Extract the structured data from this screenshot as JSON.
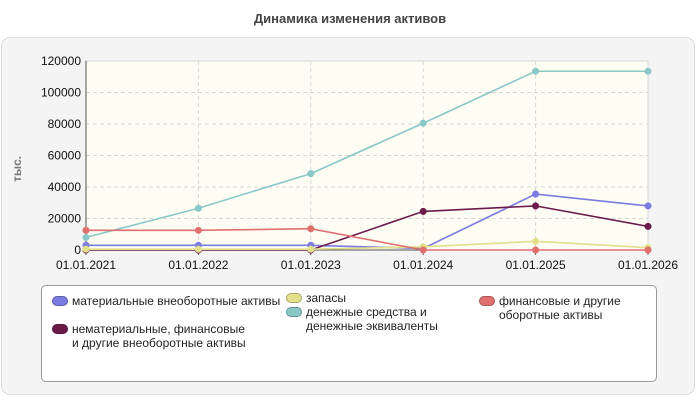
{
  "chart_data": {
    "type": "line",
    "title": "Динамика изменения активов",
    "ylabel": "тыс.",
    "xlabel": "",
    "categories": [
      "01.01.2021",
      "01.01.2022",
      "01.01.2023",
      "01.01.2024",
      "01.01.2025",
      "01.01.2026"
    ],
    "ylim": [
      0,
      120000
    ],
    "yticks": [
      0,
      20000,
      40000,
      60000,
      80000,
      100000,
      120000
    ],
    "grid": true,
    "legend_position": "bottom",
    "series": [
      {
        "name": "материальные внеоборотные активы",
        "color": "#7b7be0",
        "values": [
          3000,
          3000,
          3000,
          1000,
          35500,
          28000
        ]
      },
      {
        "name": "нематериальные, финансовые и другие внеоборотные активы",
        "color": "#6b1a4a",
        "values": [
          0,
          0,
          0,
          24500,
          28000,
          15000
        ]
      },
      {
        "name": "запасы",
        "color": "#e2e08a",
        "values": [
          500,
          500,
          500,
          2000,
          5500,
          1500
        ]
      },
      {
        "name": "денежные средства и денежные эквиваленты",
        "color": "#8ac8c8",
        "values": [
          8000,
          26500,
          48500,
          80500,
          113500,
          113500
        ]
      },
      {
        "name": "финансовые и другие оборотные активы",
        "color": "#e07070",
        "values": [
          12500,
          12500,
          13500,
          0,
          0,
          0
        ]
      }
    ]
  }
}
